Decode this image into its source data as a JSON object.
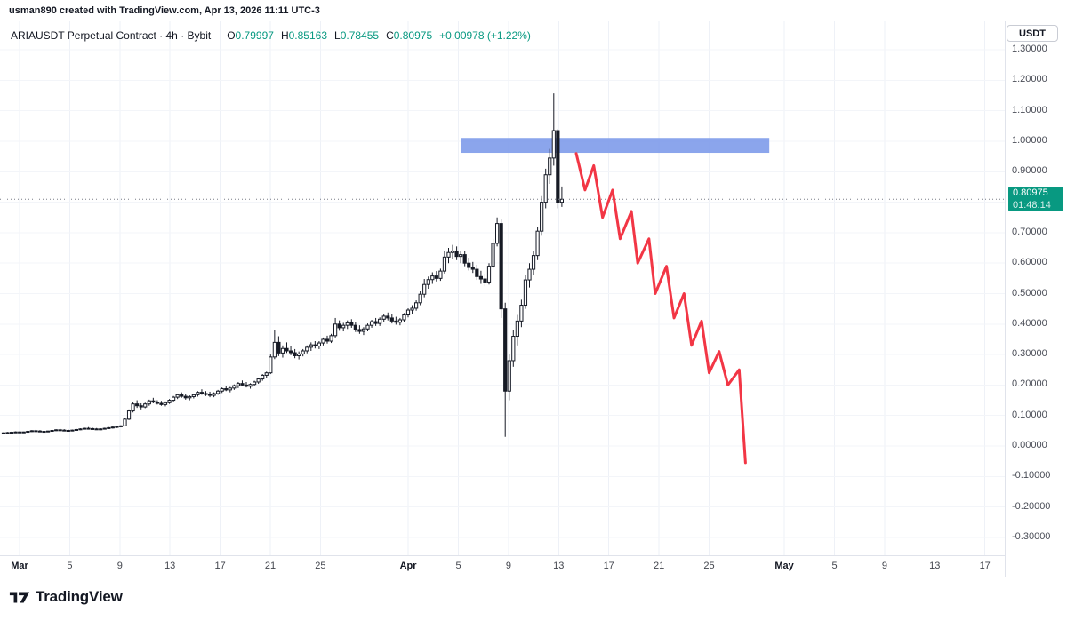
{
  "attribution": {
    "text": "usman890 created with TradingView.com, Apr 13, 2026 11:11 UTC-3"
  },
  "legend": {
    "symbol": "ARIAUSDT Perpetual Contract · 4h · Bybit",
    "open_label": "O",
    "open": "0.79997",
    "high_label": "H",
    "high": "0.85163",
    "low_label": "L",
    "low": "0.78455",
    "close_label": "C",
    "close": "0.80975",
    "change": "+0.00978 (+1.22%)"
  },
  "axis": {
    "currency_button": "USDT",
    "price_ticks": [
      "1.30000",
      "1.20000",
      "1.10000",
      "1.00000",
      "0.90000",
      "0.80000",
      "0.70000",
      "0.60000",
      "0.50000",
      "0.40000",
      "0.30000",
      "0.20000",
      "0.10000",
      "0.00000",
      "-0.10000",
      "-0.20000",
      "-0.30000"
    ],
    "time_ticks": [
      {
        "label": "Mar",
        "day": 0,
        "major": true
      },
      {
        "label": "5",
        "day": 4
      },
      {
        "label": "9",
        "day": 8
      },
      {
        "label": "13",
        "day": 12
      },
      {
        "label": "17",
        "day": 16
      },
      {
        "label": "21",
        "day": 20
      },
      {
        "label": "25",
        "day": 24
      },
      {
        "label": "Apr",
        "day": 31,
        "major": true
      },
      {
        "label": "5",
        "day": 35
      },
      {
        "label": "9",
        "day": 39
      },
      {
        "label": "13",
        "day": 43
      },
      {
        "label": "17",
        "day": 47
      },
      {
        "label": "21",
        "day": 51
      },
      {
        "label": "25",
        "day": 55
      },
      {
        "label": "May",
        "day": 61,
        "major": true
      },
      {
        "label": "5",
        "day": 65
      },
      {
        "label": "9",
        "day": 69
      },
      {
        "label": "13",
        "day": 73
      },
      {
        "label": "17",
        "day": 77
      }
    ]
  },
  "price_label": {
    "price": "0.80975",
    "countdown": "01:48:14",
    "color": "#089981"
  },
  "footer": {
    "brand": "TradingView"
  },
  "chart_data": {
    "type": "candlestick",
    "symbol": "ARIAUSDT",
    "market": "Perpetual Contract",
    "interval": "4h",
    "exchange": "Bybit",
    "current_bar": {
      "open": 0.79997,
      "high": 0.85163,
      "low": 0.78455,
      "close": 0.80975,
      "change": 0.00978,
      "change_pct": 1.22
    },
    "y_axis": {
      "min": -0.35,
      "max": 1.35,
      "tick_step": 0.1,
      "currency": "USDT"
    },
    "x_axis": {
      "start": "Feb 27",
      "end": "May 17",
      "bars_per_day": 3
    },
    "colors": {
      "up": "#ffffff",
      "down": "#161a25",
      "border": "#161a25",
      "grid": "#eef1f7",
      "accent_green": "#089981",
      "accent_red": "#f23645",
      "rect_blue": "#7e9bea"
    },
    "candles": [
      [
        0.042,
        0.045,
        0.04,
        0.043
      ],
      [
        0.043,
        0.046,
        0.041,
        0.044
      ],
      [
        0.044,
        0.047,
        0.042,
        0.045
      ],
      [
        0.045,
        0.048,
        0.043,
        0.046
      ],
      [
        0.046,
        0.048,
        0.044,
        0.045
      ],
      [
        0.045,
        0.047,
        0.043,
        0.046
      ],
      [
        0.046,
        0.05,
        0.044,
        0.048
      ],
      [
        0.048,
        0.052,
        0.046,
        0.05
      ],
      [
        0.05,
        0.053,
        0.047,
        0.049
      ],
      [
        0.049,
        0.052,
        0.046,
        0.048
      ],
      [
        0.048,
        0.051,
        0.045,
        0.047
      ],
      [
        0.047,
        0.05,
        0.045,
        0.049
      ],
      [
        0.049,
        0.053,
        0.047,
        0.051
      ],
      [
        0.051,
        0.055,
        0.049,
        0.053
      ],
      [
        0.053,
        0.056,
        0.05,
        0.052
      ],
      [
        0.052,
        0.055,
        0.049,
        0.051
      ],
      [
        0.051,
        0.054,
        0.048,
        0.05
      ],
      [
        0.05,
        0.054,
        0.048,
        0.052
      ],
      [
        0.052,
        0.056,
        0.05,
        0.054
      ],
      [
        0.054,
        0.058,
        0.052,
        0.056
      ],
      [
        0.056,
        0.06,
        0.054,
        0.058
      ],
      [
        0.058,
        0.062,
        0.055,
        0.057
      ],
      [
        0.057,
        0.06,
        0.054,
        0.056
      ],
      [
        0.056,
        0.059,
        0.053,
        0.055
      ],
      [
        0.055,
        0.058,
        0.052,
        0.056
      ],
      [
        0.056,
        0.06,
        0.054,
        0.058
      ],
      [
        0.058,
        0.062,
        0.056,
        0.06
      ],
      [
        0.06,
        0.064,
        0.057,
        0.062
      ],
      [
        0.062,
        0.066,
        0.059,
        0.064
      ],
      [
        0.064,
        0.068,
        0.061,
        0.066
      ],
      [
        0.066,
        0.09,
        0.064,
        0.088
      ],
      [
        0.088,
        0.12,
        0.085,
        0.115
      ],
      [
        0.115,
        0.145,
        0.11,
        0.138
      ],
      [
        0.138,
        0.15,
        0.125,
        0.132
      ],
      [
        0.132,
        0.14,
        0.12,
        0.128
      ],
      [
        0.128,
        0.142,
        0.124,
        0.138
      ],
      [
        0.138,
        0.152,
        0.132,
        0.148
      ],
      [
        0.148,
        0.158,
        0.14,
        0.144
      ],
      [
        0.144,
        0.15,
        0.136,
        0.14
      ],
      [
        0.14,
        0.148,
        0.132,
        0.136
      ],
      [
        0.136,
        0.146,
        0.13,
        0.142
      ],
      [
        0.142,
        0.154,
        0.138,
        0.15
      ],
      [
        0.15,
        0.164,
        0.146,
        0.16
      ],
      [
        0.16,
        0.172,
        0.154,
        0.168
      ],
      [
        0.168,
        0.176,
        0.158,
        0.163
      ],
      [
        0.163,
        0.17,
        0.152,
        0.158
      ],
      [
        0.158,
        0.166,
        0.15,
        0.162
      ],
      [
        0.162,
        0.172,
        0.156,
        0.168
      ],
      [
        0.168,
        0.18,
        0.162,
        0.176
      ],
      [
        0.176,
        0.186,
        0.168,
        0.172
      ],
      [
        0.172,
        0.18,
        0.164,
        0.17
      ],
      [
        0.17,
        0.178,
        0.16,
        0.166
      ],
      [
        0.166,
        0.176,
        0.16,
        0.172
      ],
      [
        0.172,
        0.184,
        0.168,
        0.18
      ],
      [
        0.18,
        0.192,
        0.174,
        0.188
      ],
      [
        0.188,
        0.198,
        0.18,
        0.184
      ],
      [
        0.184,
        0.194,
        0.176,
        0.19
      ],
      [
        0.19,
        0.202,
        0.184,
        0.198
      ],
      [
        0.198,
        0.21,
        0.19,
        0.205
      ],
      [
        0.205,
        0.215,
        0.196,
        0.2
      ],
      [
        0.2,
        0.21,
        0.192,
        0.196
      ],
      [
        0.196,
        0.206,
        0.188,
        0.202
      ],
      [
        0.202,
        0.214,
        0.196,
        0.21
      ],
      [
        0.21,
        0.224,
        0.204,
        0.22
      ],
      [
        0.22,
        0.236,
        0.214,
        0.232
      ],
      [
        0.232,
        0.244,
        0.224,
        0.24
      ],
      [
        0.24,
        0.3,
        0.236,
        0.292
      ],
      [
        0.292,
        0.38,
        0.285,
        0.34
      ],
      [
        0.34,
        0.36,
        0.295,
        0.305
      ],
      [
        0.305,
        0.33,
        0.29,
        0.32
      ],
      [
        0.32,
        0.34,
        0.305,
        0.312
      ],
      [
        0.312,
        0.328,
        0.298,
        0.306
      ],
      [
        0.306,
        0.318,
        0.288,
        0.296
      ],
      [
        0.296,
        0.31,
        0.284,
        0.302
      ],
      [
        0.302,
        0.318,
        0.294,
        0.312
      ],
      [
        0.312,
        0.33,
        0.304,
        0.324
      ],
      [
        0.324,
        0.34,
        0.312,
        0.332
      ],
      [
        0.332,
        0.344,
        0.32,
        0.328
      ],
      [
        0.328,
        0.344,
        0.318,
        0.338
      ],
      [
        0.338,
        0.356,
        0.33,
        0.35
      ],
      [
        0.35,
        0.362,
        0.336,
        0.344
      ],
      [
        0.344,
        0.368,
        0.338,
        0.362
      ],
      [
        0.362,
        0.42,
        0.356,
        0.4
      ],
      [
        0.4,
        0.412,
        0.378,
        0.388
      ],
      [
        0.388,
        0.404,
        0.376,
        0.396
      ],
      [
        0.396,
        0.412,
        0.384,
        0.404
      ],
      [
        0.404,
        0.416,
        0.388,
        0.396
      ],
      [
        0.396,
        0.406,
        0.374,
        0.382
      ],
      [
        0.382,
        0.396,
        0.368,
        0.376
      ],
      [
        0.376,
        0.39,
        0.364,
        0.384
      ],
      [
        0.384,
        0.402,
        0.376,
        0.396
      ],
      [
        0.396,
        0.414,
        0.388,
        0.408
      ],
      [
        0.408,
        0.42,
        0.394,
        0.402
      ],
      [
        0.402,
        0.422,
        0.394,
        0.416
      ],
      [
        0.416,
        0.432,
        0.406,
        0.426
      ],
      [
        0.426,
        0.438,
        0.412,
        0.42
      ],
      [
        0.42,
        0.432,
        0.402,
        0.41
      ],
      [
        0.41,
        0.424,
        0.398,
        0.406
      ],
      [
        0.406,
        0.42,
        0.396,
        0.414
      ],
      [
        0.414,
        0.436,
        0.406,
        0.43
      ],
      [
        0.43,
        0.452,
        0.422,
        0.446
      ],
      [
        0.446,
        0.462,
        0.434,
        0.452
      ],
      [
        0.452,
        0.478,
        0.444,
        0.47
      ],
      [
        0.47,
        0.51,
        0.462,
        0.498
      ],
      [
        0.498,
        0.548,
        0.488,
        0.53
      ],
      [
        0.53,
        0.556,
        0.516,
        0.546
      ],
      [
        0.546,
        0.57,
        0.532,
        0.558
      ],
      [
        0.558,
        0.574,
        0.54,
        0.55
      ],
      [
        0.55,
        0.582,
        0.542,
        0.574
      ],
      [
        0.574,
        0.64,
        0.566,
        0.62
      ],
      [
        0.62,
        0.65,
        0.6,
        0.635
      ],
      [
        0.635,
        0.66,
        0.615,
        0.64
      ],
      [
        0.64,
        0.655,
        0.61,
        0.622
      ],
      [
        0.622,
        0.64,
        0.6,
        0.628
      ],
      [
        0.628,
        0.64,
        0.59,
        0.6
      ],
      [
        0.6,
        0.618,
        0.576,
        0.586
      ],
      [
        0.586,
        0.604,
        0.568,
        0.58
      ],
      [
        0.58,
        0.595,
        0.545,
        0.556
      ],
      [
        0.556,
        0.575,
        0.532,
        0.548
      ],
      [
        0.548,
        0.566,
        0.524,
        0.538
      ],
      [
        0.538,
        0.6,
        0.53,
        0.59
      ],
      [
        0.59,
        0.68,
        0.582,
        0.665
      ],
      [
        0.665,
        0.75,
        0.655,
        0.73
      ],
      [
        0.73,
        0.745,
        0.42,
        0.45
      ],
      [
        0.45,
        0.47,
        0.03,
        0.18
      ],
      [
        0.18,
        0.3,
        0.15,
        0.28
      ],
      [
        0.28,
        0.38,
        0.26,
        0.36
      ],
      [
        0.36,
        0.43,
        0.33,
        0.41
      ],
      [
        0.41,
        0.48,
        0.39,
        0.462
      ],
      [
        0.462,
        0.56,
        0.45,
        0.545
      ],
      [
        0.545,
        0.6,
        0.52,
        0.58
      ],
      [
        0.58,
        0.64,
        0.56,
        0.625
      ],
      [
        0.625,
        0.72,
        0.61,
        0.705
      ],
      [
        0.705,
        0.82,
        0.69,
        0.8
      ],
      [
        0.8,
        0.91,
        0.78,
        0.89
      ],
      [
        0.89,
        0.975,
        0.86,
        0.945
      ],
      [
        0.945,
        1.157,
        0.92,
        1.035
      ],
      [
        1.035,
        1.04,
        0.78,
        0.8
      ],
      [
        0.79997,
        0.85163,
        0.78455,
        0.80975
      ]
    ],
    "annotations": {
      "rectangle": {
        "day_start": 35.2,
        "day_end": 59.8,
        "price_top": 1.011,
        "price_bottom": 0.962,
        "color": "#7e9bea"
      },
      "zigzag": {
        "color": "#f23645",
        "width": 3,
        "points": [
          [
            44.4,
            0.96
          ],
          [
            45.1,
            0.84
          ],
          [
            45.8,
            0.92
          ],
          [
            46.5,
            0.75
          ],
          [
            47.3,
            0.84
          ],
          [
            47.9,
            0.68
          ],
          [
            48.8,
            0.77
          ],
          [
            49.3,
            0.6
          ],
          [
            50.2,
            0.68
          ],
          [
            50.7,
            0.5
          ],
          [
            51.6,
            0.59
          ],
          [
            52.2,
            0.42
          ],
          [
            53.0,
            0.5
          ],
          [
            53.6,
            0.33
          ],
          [
            54.4,
            0.41
          ],
          [
            55.0,
            0.24
          ],
          [
            55.8,
            0.31
          ],
          [
            56.5,
            0.2
          ],
          [
            57.4,
            0.25
          ],
          [
            57.9,
            -0.055
          ]
        ]
      },
      "price_line": {
        "price": 0.80975,
        "style": "dotted",
        "color": "#787b86"
      }
    }
  }
}
